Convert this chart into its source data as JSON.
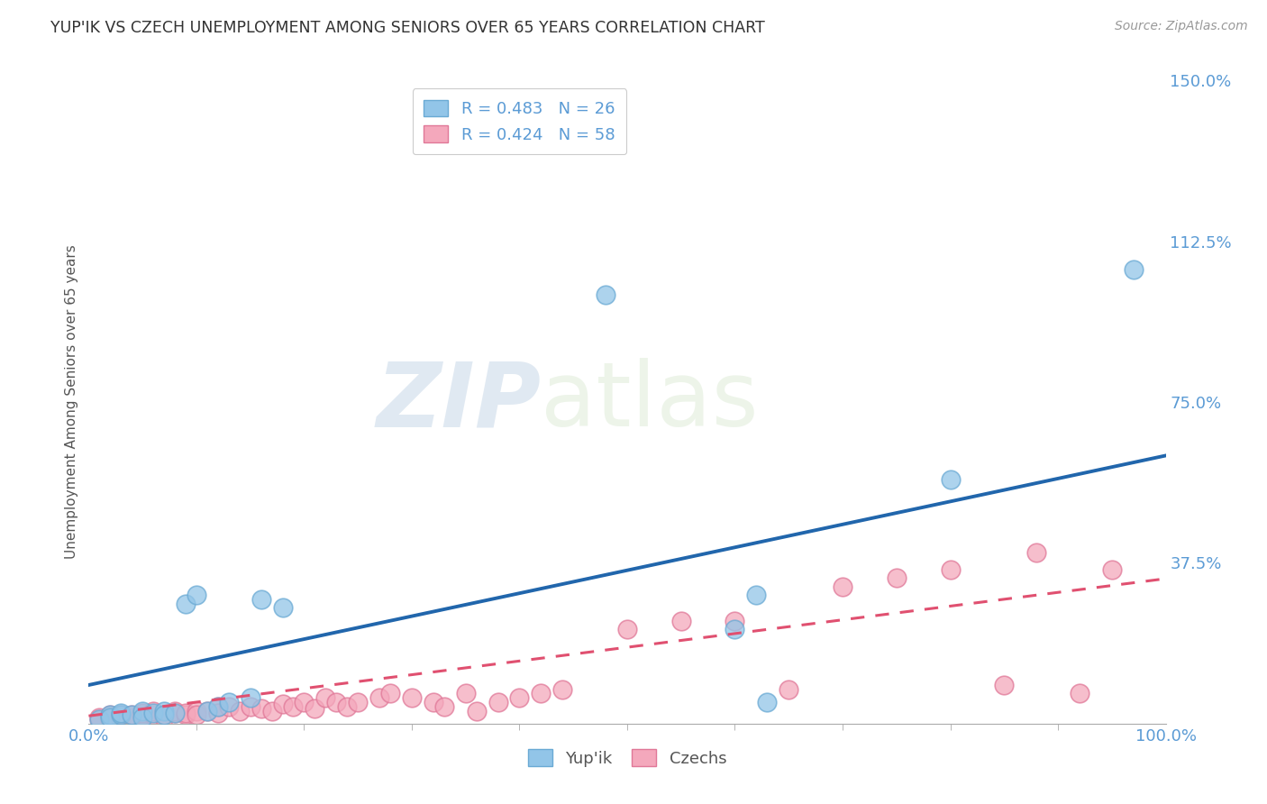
{
  "title": "YUP'IK VS CZECH UNEMPLOYMENT AMONG SENIORS OVER 65 YEARS CORRELATION CHART",
  "source": "Source: ZipAtlas.com",
  "ylabel": "Unemployment Among Seniors over 65 years",
  "xlim": [
    0.0,
    1.0
  ],
  "ylim": [
    0.0,
    1.5
  ],
  "ytick_positions": [
    0.0,
    0.375,
    0.75,
    1.125,
    1.5
  ],
  "ytick_labels": [
    "",
    "37.5%",
    "75.0%",
    "112.5%",
    "150.0%"
  ],
  "yupik_color": "#92C5E8",
  "yupik_edge_color": "#6AAAD4",
  "czech_color": "#F4A8BC",
  "czech_edge_color": "#E07898",
  "line_blue": "#2166AC",
  "line_pink": "#E05070",
  "grid_color": "#CCCCCC",
  "background_color": "#FFFFFF",
  "title_color": "#333333",
  "axis_label_color": "#555555",
  "tick_color": "#5B9BD5",
  "watermark_zip": "ZIP",
  "watermark_atlas": "atlas",
  "yupik_R": 0.483,
  "yupik_N": 26,
  "czech_R": 0.424,
  "czech_N": 58,
  "yupik_scatter_x": [
    0.01,
    0.02,
    0.02,
    0.03,
    0.03,
    0.04,
    0.05,
    0.05,
    0.06,
    0.07,
    0.07,
    0.08,
    0.09,
    0.1,
    0.11,
    0.12,
    0.13,
    0.15,
    0.16,
    0.18,
    0.48,
    0.6,
    0.62,
    0.63,
    0.8,
    0.97
  ],
  "yupik_scatter_y": [
    0.01,
    0.02,
    0.015,
    0.02,
    0.025,
    0.02,
    0.03,
    0.015,
    0.025,
    0.03,
    0.02,
    0.025,
    0.28,
    0.3,
    0.03,
    0.04,
    0.05,
    0.06,
    0.29,
    0.27,
    1.0,
    0.22,
    0.3,
    0.05,
    0.57,
    1.06
  ],
  "czech_scatter_x": [
    0.01,
    0.01,
    0.02,
    0.02,
    0.03,
    0.03,
    0.04,
    0.04,
    0.05,
    0.05,
    0.06,
    0.06,
    0.07,
    0.07,
    0.08,
    0.08,
    0.09,
    0.09,
    0.1,
    0.1,
    0.11,
    0.12,
    0.12,
    0.13,
    0.14,
    0.15,
    0.16,
    0.17,
    0.18,
    0.19,
    0.2,
    0.21,
    0.22,
    0.23,
    0.24,
    0.25,
    0.27,
    0.28,
    0.3,
    0.32,
    0.33,
    0.35,
    0.36,
    0.38,
    0.4,
    0.42,
    0.44,
    0.5,
    0.55,
    0.6,
    0.65,
    0.7,
    0.75,
    0.8,
    0.85,
    0.88,
    0.92,
    0.95
  ],
  "czech_scatter_y": [
    0.01,
    0.015,
    0.01,
    0.02,
    0.01,
    0.02,
    0.015,
    0.02,
    0.02,
    0.025,
    0.02,
    0.03,
    0.02,
    0.015,
    0.025,
    0.03,
    0.02,
    0.025,
    0.03,
    0.02,
    0.03,
    0.04,
    0.025,
    0.04,
    0.03,
    0.04,
    0.035,
    0.03,
    0.045,
    0.04,
    0.05,
    0.035,
    0.06,
    0.05,
    0.04,
    0.05,
    0.06,
    0.07,
    0.06,
    0.05,
    0.04,
    0.07,
    0.03,
    0.05,
    0.06,
    0.07,
    0.08,
    0.22,
    0.24,
    0.24,
    0.08,
    0.32,
    0.34,
    0.36,
    0.09,
    0.4,
    0.07,
    0.36
  ],
  "yupik_line_intercept": 0.09,
  "yupik_line_slope": 0.535,
  "czech_line_intercept": 0.018,
  "czech_line_slope": 0.32,
  "xtick_minor_positions": [
    0.0,
    0.1,
    0.2,
    0.3,
    0.4,
    0.5,
    0.6,
    0.7,
    0.8,
    0.9,
    1.0
  ]
}
